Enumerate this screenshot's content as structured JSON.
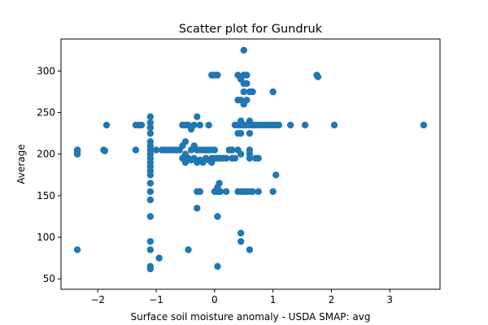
{
  "chart_data": {
    "type": "scatter",
    "title": "Scatter plot for Gundruk",
    "xlabel": "Surface soil moisture anomaly  - USDA SMAP: avg",
    "ylabel": "Average",
    "xlim": [
      -2.63,
      3.86
    ],
    "ylim": [
      37.5,
      338.5
    ],
    "xticks": [
      -2,
      -1,
      0,
      1,
      2,
      3
    ],
    "xtick_labels": [
      "−2",
      "−1",
      "0",
      "1",
      "2",
      "3"
    ],
    "yticks": [
      50,
      100,
      150,
      200,
      250,
      300
    ],
    "ytick_labels": [
      "50",
      "100",
      "150",
      "200",
      "250",
      "300"
    ],
    "grid": false,
    "marker_color": "#1f77b4",
    "points": [
      [
        -2.35,
        205
      ],
      [
        -2.35,
        203
      ],
      [
        -2.35,
        200
      ],
      [
        -2.35,
        85
      ],
      [
        -1.9,
        205
      ],
      [
        -1.88,
        204
      ],
      [
        -1.85,
        235
      ],
      [
        -1.35,
        235
      ],
      [
        -1.35,
        205
      ],
      [
        -1.3,
        235
      ],
      [
        -1.25,
        235
      ],
      [
        -1.1,
        245
      ],
      [
        -1.1,
        238
      ],
      [
        -1.1,
        232
      ],
      [
        -1.1,
        225
      ],
      [
        -1.1,
        215
      ],
      [
        -1.1,
        210
      ],
      [
        -1.1,
        205
      ],
      [
        -1.1,
        200
      ],
      [
        -1.1,
        195
      ],
      [
        -1.1,
        190
      ],
      [
        -1.1,
        185
      ],
      [
        -1.1,
        180
      ],
      [
        -1.1,
        175
      ],
      [
        -1.1,
        165
      ],
      [
        -1.1,
        155
      ],
      [
        -1.1,
        145
      ],
      [
        -1.1,
        125
      ],
      [
        -1.1,
        95
      ],
      [
        -1.1,
        85
      ],
      [
        -1.1,
        65
      ],
      [
        -1.1,
        62
      ],
      [
        -1.0,
        205
      ],
      [
        -0.95,
        75
      ],
      [
        -0.9,
        205
      ],
      [
        -0.85,
        205
      ],
      [
        -0.8,
        205
      ],
      [
        -0.75,
        205
      ],
      [
        -0.7,
        205
      ],
      [
        -0.65,
        205
      ],
      [
        -0.6,
        205
      ],
      [
        -0.55,
        235
      ],
      [
        -0.55,
        210
      ],
      [
        -0.55,
        195
      ],
      [
        -0.5,
        235
      ],
      [
        -0.5,
        215
      ],
      [
        -0.5,
        200
      ],
      [
        -0.5,
        190
      ],
      [
        -0.45,
        235
      ],
      [
        -0.45,
        195
      ],
      [
        -0.45,
        85
      ],
      [
        -0.4,
        230
      ],
      [
        -0.4,
        205
      ],
      [
        -0.4,
        193
      ],
      [
        -0.35,
        235
      ],
      [
        -0.35,
        210
      ],
      [
        -0.35,
        195
      ],
      [
        -0.3,
        245
      ],
      [
        -0.3,
        205
      ],
      [
        -0.3,
        190
      ],
      [
        -0.3,
        155
      ],
      [
        -0.3,
        135
      ],
      [
        -0.25,
        235
      ],
      [
        -0.25,
        205
      ],
      [
        -0.25,
        193
      ],
      [
        -0.25,
        155
      ],
      [
        -0.2,
        205
      ],
      [
        -0.2,
        190
      ],
      [
        -0.15,
        205
      ],
      [
        -0.15,
        195
      ],
      [
        -0.1,
        235
      ],
      [
        -0.1,
        205
      ],
      [
        -0.1,
        193
      ],
      [
        -0.05,
        295
      ],
      [
        -0.05,
        205
      ],
      [
        -0.05,
        195
      ],
      [
        -0.05,
        190
      ],
      [
        0.0,
        295
      ],
      [
        0.0,
        205
      ],
      [
        0.0,
        195
      ],
      [
        0.05,
        295
      ],
      [
        0.05,
        195
      ],
      [
        0.0,
        155
      ],
      [
        0.05,
        160
      ],
      [
        0.05,
        155
      ],
      [
        0.08,
        165
      ],
      [
        0.08,
        155
      ],
      [
        0.1,
        195
      ],
      [
        0.1,
        155
      ],
      [
        0.05,
        125
      ],
      [
        0.05,
        65
      ],
      [
        0.15,
        195
      ],
      [
        0.2,
        195
      ],
      [
        0.2,
        155
      ],
      [
        0.25,
        205
      ],
      [
        0.3,
        205
      ],
      [
        0.3,
        195
      ],
      [
        0.35,
        235
      ],
      [
        0.35,
        195
      ],
      [
        0.4,
        295
      ],
      [
        0.4,
        265
      ],
      [
        0.4,
        235
      ],
      [
        0.4,
        225
      ],
      [
        0.4,
        205
      ],
      [
        0.4,
        155
      ],
      [
        0.45,
        290
      ],
      [
        0.45,
        265
      ],
      [
        0.45,
        240
      ],
      [
        0.45,
        235
      ],
      [
        0.45,
        225
      ],
      [
        0.45,
        200
      ],
      [
        0.45,
        155
      ],
      [
        0.45,
        105
      ],
      [
        0.45,
        95
      ],
      [
        0.5,
        325
      ],
      [
        0.5,
        295
      ],
      [
        0.5,
        285
      ],
      [
        0.5,
        275
      ],
      [
        0.5,
        260
      ],
      [
        0.5,
        235
      ],
      [
        0.5,
        155
      ],
      [
        0.55,
        295
      ],
      [
        0.55,
        285
      ],
      [
        0.55,
        265
      ],
      [
        0.55,
        235
      ],
      [
        0.55,
        155
      ],
      [
        0.6,
        275
      ],
      [
        0.6,
        240
      ],
      [
        0.6,
        235
      ],
      [
        0.6,
        225
      ],
      [
        0.6,
        205
      ],
      [
        0.6,
        200
      ],
      [
        0.6,
        195
      ],
      [
        0.6,
        155
      ],
      [
        0.6,
        85
      ],
      [
        0.65,
        275
      ],
      [
        0.65,
        235
      ],
      [
        0.65,
        155
      ],
      [
        0.7,
        235
      ],
      [
        0.7,
        195
      ],
      [
        0.75,
        235
      ],
      [
        0.75,
        195
      ],
      [
        0.75,
        155
      ],
      [
        0.8,
        235
      ],
      [
        0.85,
        235
      ],
      [
        0.9,
        235
      ],
      [
        0.95,
        235
      ],
      [
        1.0,
        275
      ],
      [
        1.0,
        235
      ],
      [
        1.0,
        155
      ],
      [
        1.05,
        235
      ],
      [
        1.05,
        175
      ],
      [
        1.1,
        235
      ],
      [
        1.3,
        235
      ],
      [
        1.55,
        235
      ],
      [
        1.75,
        295
      ],
      [
        1.77,
        293
      ],
      [
        2.05,
        235
      ],
      [
        3.58,
        235
      ]
    ]
  }
}
